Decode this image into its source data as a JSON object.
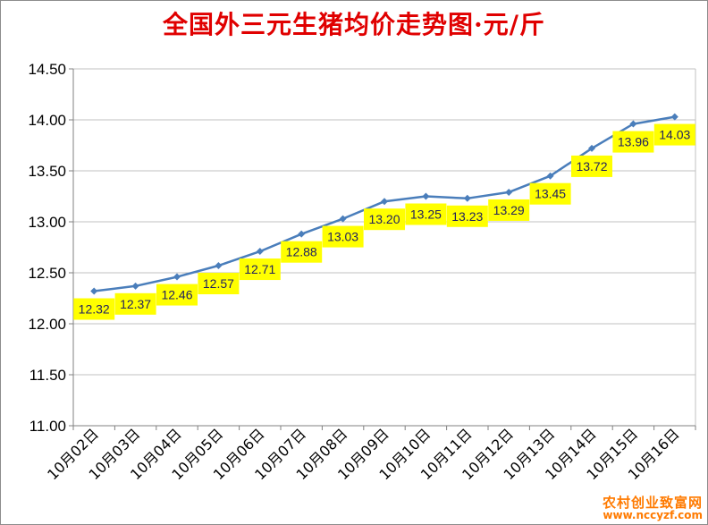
{
  "chart_data": {
    "type": "line",
    "title": "全国外三元生猪均价走势图·元/斤",
    "categories": [
      "10月02日",
      "10月03日",
      "10月04日",
      "10月05日",
      "10月06日",
      "10月07日",
      "10月08日",
      "10月09日",
      "10月10日",
      "10月11日",
      "10月12日",
      "10月13日",
      "10月14日",
      "10月15日",
      "10月16日"
    ],
    "series": [
      {
        "values": [
          12.32,
          12.37,
          12.46,
          12.57,
          12.71,
          12.88,
          13.03,
          13.2,
          13.25,
          13.23,
          13.29,
          13.45,
          13.72,
          13.96,
          14.03
        ]
      }
    ],
    "data_labels": [
      "12.32",
      "12.37",
      "12.46",
      "12.57",
      "12.71",
      "12.88",
      "13.03",
      "13.20",
      "13.25",
      "13.23",
      "13.29",
      "13.45",
      "13.72",
      "13.96",
      "14.03"
    ],
    "y_ticks": [
      "11.00",
      "11.50",
      "12.00",
      "12.50",
      "13.00",
      "13.50",
      "14.00",
      "14.50"
    ],
    "ylim": [
      11.0,
      14.5
    ],
    "grid": true,
    "legend": "none",
    "colors": {
      "line": "#4a7ebb",
      "marker": "#4a7ebb",
      "label_bg": "#ffff00",
      "grid": "#c0c0c0",
      "title": "#e00000"
    }
  },
  "watermark": {
    "line1": "农村创业致富网",
    "line2": "www.nccyzf.com"
  }
}
